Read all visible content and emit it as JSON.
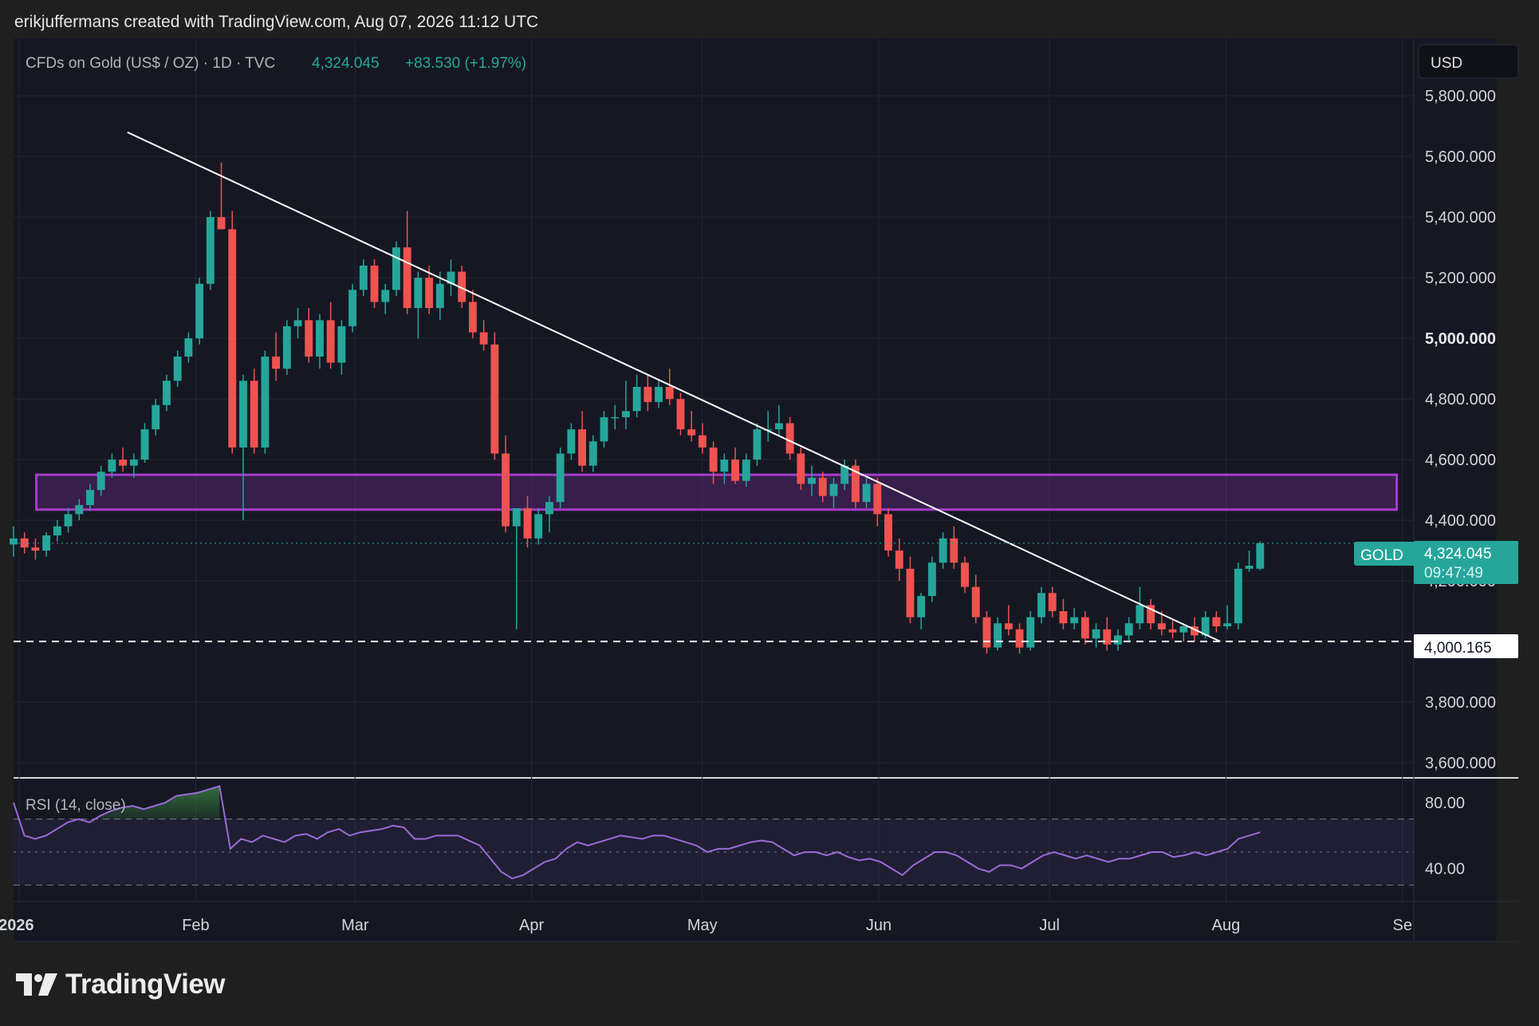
{
  "header": {
    "credit": "erikjuffermans created with TradingView.com, Aug 07, 2026 11:12 UTC"
  },
  "legend": {
    "symbol": "CFDs on Gold (US$ / OZ) · 1D · TVC",
    "price": "4,324.045",
    "change": "+83.530 (+1.97%)"
  },
  "currency_button": "USD",
  "last_price_tag": {
    "symbol": "GOLD",
    "price": "4,324.045",
    "countdown": "09:47:49"
  },
  "line_tag": "4,000.165",
  "rsi": {
    "label": "RSI (14, close)"
  },
  "branding": {
    "name": "TradingView"
  },
  "colors": {
    "up": "#26a69a",
    "down": "#ef5350",
    "zone": "#8e2fb4",
    "rsi": "#9b6bd6",
    "accent": "#22ab94"
  },
  "chart_data": {
    "type": "candlestick",
    "title": "CFDs on Gold (US$ / OZ) · 1D · TVC",
    "x_ticks": [
      "2026",
      "Feb",
      "Mar",
      "Apr",
      "May",
      "Jun",
      "Jul",
      "Aug",
      "Se"
    ],
    "y_ticks": [
      "5,800.000",
      "5,600.000",
      "5,400.000",
      "5,200.000",
      "5,000.000",
      "4,800.000",
      "4,600.000",
      "4,400.000",
      "4,200.000",
      "3,800.000",
      "3,600.000"
    ],
    "ylim": [
      3550,
      5990
    ],
    "date_range": [
      "2025-12-31",
      "2026-09-03"
    ],
    "candles_ohlc": [
      [
        4320,
        4380,
        4280,
        4340
      ],
      [
        4340,
        4360,
        4290,
        4310
      ],
      [
        4310,
        4340,
        4270,
        4300
      ],
      [
        4300,
        4360,
        4280,
        4350
      ],
      [
        4350,
        4400,
        4330,
        4380
      ],
      [
        4380,
        4440,
        4360,
        4420
      ],
      [
        4420,
        4470,
        4400,
        4450
      ],
      [
        4450,
        4520,
        4430,
        4500
      ],
      [
        4500,
        4580,
        4480,
        4560
      ],
      [
        4560,
        4620,
        4540,
        4600
      ],
      [
        4600,
        4640,
        4560,
        4580
      ],
      [
        4580,
        4620,
        4540,
        4600
      ],
      [
        4600,
        4720,
        4590,
        4700
      ],
      [
        4700,
        4800,
        4680,
        4780
      ],
      [
        4780,
        4880,
        4760,
        4860
      ],
      [
        4860,
        4960,
        4840,
        4940
      ],
      [
        4940,
        5020,
        4920,
        5000
      ],
      [
        5000,
        5200,
        4980,
        5180
      ],
      [
        5180,
        5420,
        5160,
        5400
      ],
      [
        5400,
        5580,
        5360,
        5360
      ],
      [
        5360,
        5420,
        4620,
        4640
      ],
      [
        4640,
        4880,
        4400,
        4860
      ],
      [
        4860,
        4900,
        4620,
        4640
      ],
      [
        4640,
        4960,
        4620,
        4940
      ],
      [
        4940,
        5020,
        4860,
        4900
      ],
      [
        4900,
        5060,
        4880,
        5040
      ],
      [
        5040,
        5100,
        5000,
        5060
      ],
      [
        5060,
        5100,
        4920,
        4940
      ],
      [
        4940,
        5080,
        4900,
        5060
      ],
      [
        5060,
        5120,
        4900,
        4920
      ],
      [
        4920,
        5060,
        4880,
        5040
      ],
      [
        5040,
        5180,
        5020,
        5160
      ],
      [
        5160,
        5260,
        5140,
        5240
      ],
      [
        5240,
        5260,
        5100,
        5120
      ],
      [
        5120,
        5180,
        5080,
        5160
      ],
      [
        5160,
        5320,
        5140,
        5300
      ],
      [
        5300,
        5420,
        5080,
        5100
      ],
      [
        5100,
        5220,
        5000,
        5200
      ],
      [
        5200,
        5240,
        5080,
        5100
      ],
      [
        5100,
        5220,
        5060,
        5180
      ],
      [
        5180,
        5260,
        5140,
        5220
      ],
      [
        5220,
        5240,
        5100,
        5120
      ],
      [
        5120,
        5160,
        5000,
        5020
      ],
      [
        5020,
        5060,
        4960,
        4980
      ],
      [
        4980,
        5020,
        4600,
        4620
      ],
      [
        4620,
        4680,
        4360,
        4380
      ],
      [
        4380,
        4420,
        4040,
        4440
      ],
      [
        4440,
        4480,
        4310,
        4340
      ],
      [
        4340,
        4440,
        4320,
        4420
      ],
      [
        4420,
        4480,
        4360,
        4460
      ],
      [
        4460,
        4640,
        4440,
        4620
      ],
      [
        4620,
        4720,
        4600,
        4700
      ],
      [
        4700,
        4760,
        4560,
        4580
      ],
      [
        4580,
        4680,
        4560,
        4660
      ],
      [
        4660,
        4760,
        4640,
        4740
      ],
      [
        4740,
        4780,
        4700,
        4740
      ],
      [
        4740,
        4860,
        4700,
        4760
      ],
      [
        4760,
        4880,
        4740,
        4840
      ],
      [
        4840,
        4880,
        4760,
        4790
      ],
      [
        4790,
        4860,
        4770,
        4840
      ],
      [
        4840,
        4900,
        4780,
        4800
      ],
      [
        4800,
        4820,
        4680,
        4700
      ],
      [
        4700,
        4760,
        4660,
        4680
      ],
      [
        4680,
        4720,
        4620,
        4640
      ],
      [
        4640,
        4660,
        4520,
        4560
      ],
      [
        4560,
        4620,
        4520,
        4600
      ],
      [
        4600,
        4640,
        4520,
        4530
      ],
      [
        4530,
        4620,
        4510,
        4600
      ],
      [
        4600,
        4720,
        4580,
        4700
      ],
      [
        4700,
        4760,
        4660,
        4700
      ],
      [
        4700,
        4780,
        4680,
        4720
      ],
      [
        4720,
        4740,
        4600,
        4620
      ],
      [
        4620,
        4640,
        4500,
        4520
      ],
      [
        4520,
        4580,
        4480,
        4540
      ],
      [
        4540,
        4560,
        4460,
        4480
      ],
      [
        4480,
        4540,
        4440,
        4520
      ],
      [
        4520,
        4600,
        4500,
        4580
      ],
      [
        4580,
        4600,
        4440,
        4460
      ],
      [
        4460,
        4540,
        4440,
        4520
      ],
      [
        4520,
        4540,
        4380,
        4420
      ],
      [
        4420,
        4440,
        4280,
        4300
      ],
      [
        4300,
        4340,
        4200,
        4240
      ],
      [
        4240,
        4280,
        4060,
        4080
      ],
      [
        4080,
        4160,
        4040,
        4150
      ],
      [
        4150,
        4280,
        4130,
        4260
      ],
      [
        4260,
        4360,
        4240,
        4340
      ],
      [
        4340,
        4380,
        4240,
        4260
      ],
      [
        4260,
        4280,
        4160,
        4180
      ],
      [
        4180,
        4220,
        4060,
        4080
      ],
      [
        4080,
        4100,
        3960,
        3980
      ],
      [
        3980,
        4080,
        3970,
        4060
      ],
      [
        4060,
        4120,
        4020,
        4040
      ],
      [
        4040,
        4060,
        3960,
        3980
      ],
      [
        3980,
        4100,
        3970,
        4080
      ],
      [
        4080,
        4180,
        4060,
        4160
      ],
      [
        4160,
        4180,
        4080,
        4100
      ],
      [
        4100,
        4140,
        4040,
        4060
      ],
      [
        4060,
        4110,
        4040,
        4080
      ],
      [
        4080,
        4100,
        3990,
        4010
      ],
      [
        4010,
        4060,
        3980,
        4040
      ],
      [
        4040,
        4080,
        3970,
        3990
      ],
      [
        3990,
        4040,
        3970,
        4020
      ],
      [
        4020,
        4080,
        4000,
        4060
      ],
      [
        4060,
        4180,
        4040,
        4120
      ],
      [
        4120,
        4140,
        4040,
        4060
      ],
      [
        4060,
        4100,
        4020,
        4040
      ],
      [
        4040,
        4070,
        4010,
        4030
      ],
      [
        4030,
        4060,
        4000,
        4050
      ],
      [
        4050,
        4080,
        4000,
        4020
      ],
      [
        4020,
        4100,
        4010,
        4080
      ],
      [
        4080,
        4100,
        4030,
        4050
      ],
      [
        4050,
        4120,
        4040,
        4060
      ],
      [
        4060,
        4260,
        4040,
        4240
      ],
      [
        4240,
        4300,
        4230,
        4250
      ],
      [
        4240,
        4330,
        4235,
        4324
      ]
    ],
    "trendline": {
      "from": [
        "2026-01-20",
        5680
      ],
      "to": [
        "2026-07-31",
        4000
      ]
    },
    "zone": {
      "from": "2026-01-04",
      "to": "2026-08-31",
      "y_low": 4435,
      "y_high": 4550
    },
    "horizontal_line": 4000.165,
    "last_price": 4324.045,
    "rsi": {
      "label": "RSI (14, close)",
      "ticks": [
        "80.00",
        "40.00"
      ],
      "levels": [
        70,
        50,
        30
      ],
      "ylim": [
        20,
        95
      ],
      "values": [
        80,
        60,
        58,
        60,
        64,
        68,
        70,
        68,
        72,
        75,
        77,
        78,
        76,
        78,
        80,
        84,
        85,
        86,
        88,
        90,
        52,
        58,
        56,
        60,
        58,
        56,
        60,
        61,
        58,
        62,
        64,
        60,
        62,
        63,
        64,
        66,
        65,
        58,
        58,
        60,
        60,
        60,
        57,
        54,
        46,
        38,
        34,
        36,
        40,
        44,
        46,
        52,
        56,
        54,
        56,
        58,
        60,
        59,
        58,
        60,
        60,
        58,
        56,
        54,
        50,
        52,
        52,
        54,
        56,
        57,
        56,
        52,
        48,
        50,
        50,
        48,
        50,
        47,
        45,
        46,
        44,
        40,
        36,
        42,
        46,
        50,
        50,
        48,
        44,
        40,
        38,
        42,
        42,
        40,
        44,
        48,
        50,
        48,
        46,
        48,
        46,
        44,
        46,
        46,
        48,
        50,
        50,
        47,
        48,
        50,
        48,
        50,
        52,
        58,
        60,
        62
      ]
    }
  }
}
